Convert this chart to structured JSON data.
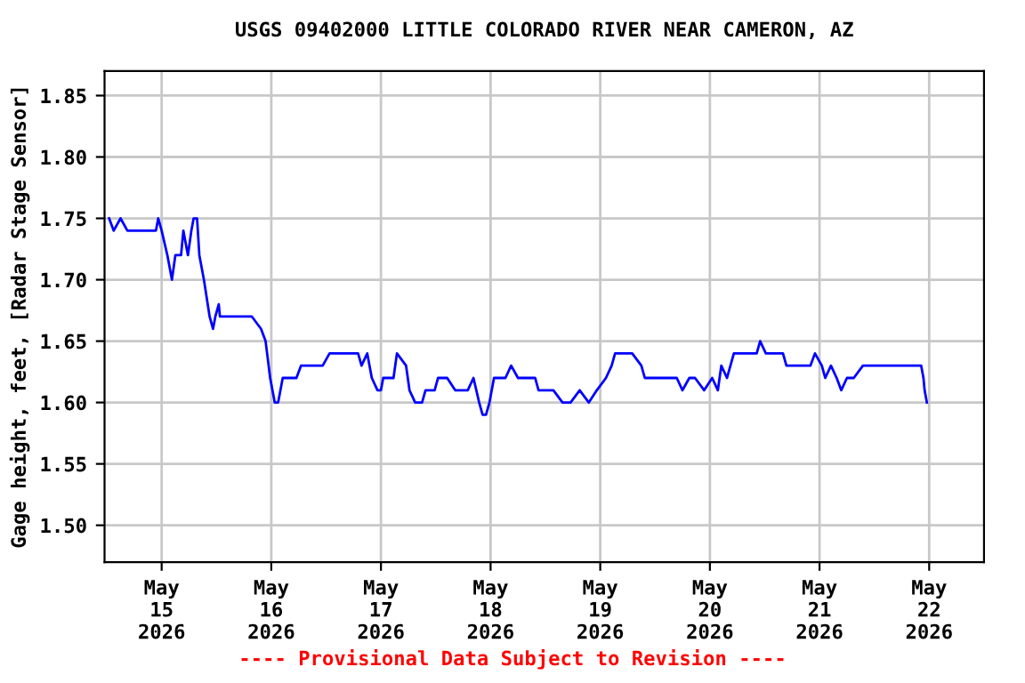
{
  "chart_data": {
    "type": "line",
    "title": "USGS 09402000 LITTLE COLORADO RIVER NEAR CAMERON, AZ",
    "ylabel": "Gage height, feet, [Radar Stage Sensor]",
    "annotations": [
      "---- Provisional Data Subject to Revision ----"
    ],
    "xlim": [
      "2026-05-14T11:30",
      "2026-05-22T12:00"
    ],
    "ylim": [
      1.47,
      1.87
    ],
    "xticks": [
      {
        "value": "2026-05-15",
        "label": "May\n15\n2026"
      },
      {
        "value": "2026-05-16",
        "label": "May\n16\n2026"
      },
      {
        "value": "2026-05-17",
        "label": "May\n17\n2026"
      },
      {
        "value": "2026-05-18",
        "label": "May\n18\n2026"
      },
      {
        "value": "2026-05-19",
        "label": "May\n19\n2026"
      },
      {
        "value": "2026-05-20",
        "label": "May\n20\n2026"
      },
      {
        "value": "2026-05-21",
        "label": "May\n21\n2026"
      },
      {
        "value": "2026-05-22",
        "label": "May\n22\n2026"
      }
    ],
    "yticks": [
      {
        "value": 1.5,
        "label": "1.50"
      },
      1.55,
      {
        "value": 1.6,
        "label": "1.60"
      },
      1.65,
      {
        "value": 1.7,
        "label": "1.70"
      },
      1.75,
      {
        "value": 1.8,
        "label": "1.80"
      },
      1.85
    ],
    "grid": true,
    "series": [
      {
        "color": "#0000ff",
        "x": [
          "2026-05-14T12:30",
          "2026-05-14T13:30",
          "2026-05-14T15:00",
          "2026-05-14T16:30",
          "2026-05-14T18:30",
          "2026-05-14T22:45",
          "2026-05-14T23:15",
          "2026-05-15T00:00",
          "2026-05-15T01:15",
          "2026-05-15T02:15",
          "2026-05-15T03:00",
          "2026-05-15T04:15",
          "2026-05-15T04:45",
          "2026-05-15T05:45",
          "2026-05-15T06:30",
          "2026-05-15T07:00",
          "2026-05-15T07:45",
          "2026-05-15T08:15",
          "2026-05-15T09:15",
          "2026-05-15T10:30",
          "2026-05-15T11:15",
          "2026-05-15T11:45",
          "2026-05-15T12:30",
          "2026-05-15T12:45",
          "2026-05-15T14:00",
          "2026-05-15T16:00",
          "2026-05-15T19:45",
          "2026-05-15T21:45",
          "2026-05-15T22:45",
          "2026-05-15T23:45",
          "2026-05-16T00:45",
          "2026-05-16T01:30",
          "2026-05-16T02:30",
          "2026-05-16T03:30",
          "2026-05-16T05:30",
          "2026-05-16T06:30",
          "2026-05-16T09:15",
          "2026-05-16T11:15",
          "2026-05-16T12:45",
          "2026-05-16T16:00",
          "2026-05-16T19:00",
          "2026-05-16T19:45",
          "2026-05-16T21:00",
          "2026-05-16T22:00",
          "2026-05-16T23:15",
          "2026-05-17T00:00",
          "2026-05-17T00:30",
          "2026-05-17T01:30",
          "2026-05-17T02:45",
          "2026-05-17T03:30",
          "2026-05-17T05:30",
          "2026-05-17T06:15",
          "2026-05-17T07:30",
          "2026-05-17T09:00",
          "2026-05-17T09:45",
          "2026-05-17T11:45",
          "2026-05-17T12:30",
          "2026-05-17T14:30",
          "2026-05-17T16:15",
          "2026-05-17T17:30",
          "2026-05-17T19:00",
          "2026-05-17T20:15",
          "2026-05-17T21:30",
          "2026-05-17T22:15",
          "2026-05-17T23:00",
          "2026-05-17T23:45",
          "2026-05-18T00:45",
          "2026-05-18T02:00",
          "2026-05-18T03:15",
          "2026-05-18T04:30",
          "2026-05-18T06:00",
          "2026-05-18T09:45",
          "2026-05-18T10:30",
          "2026-05-18T13:45",
          "2026-05-18T15:45",
          "2026-05-18T17:30",
          "2026-05-18T19:30",
          "2026-05-18T21:30",
          "2026-05-18T23:15",
          "2026-05-19T01:15",
          "2026-05-19T02:30",
          "2026-05-19T03:15",
          "2026-05-19T05:15",
          "2026-05-19T07:00",
          "2026-05-19T09:00",
          "2026-05-19T09:45",
          "2026-05-19T13:00",
          "2026-05-19T15:00",
          "2026-05-19T16:45",
          "2026-05-19T18:00",
          "2026-05-19T19:30",
          "2026-05-19T20:45",
          "2026-05-19T22:45",
          "2026-05-20T00:30",
          "2026-05-20T01:45",
          "2026-05-20T02:30",
          "2026-05-20T03:45",
          "2026-05-20T04:30",
          "2026-05-20T05:15",
          "2026-05-20T08:15",
          "2026-05-20T10:15",
          "2026-05-20T11:00",
          "2026-05-20T12:15",
          "2026-05-20T16:00",
          "2026-05-20T16:45",
          "2026-05-20T20:00",
          "2026-05-20T22:00",
          "2026-05-20T23:00",
          "2026-05-21T00:30",
          "2026-05-21T01:15",
          "2026-05-21T02:30",
          "2026-05-21T03:45",
          "2026-05-21T04:45",
          "2026-05-21T06:00",
          "2026-05-21T07:30",
          "2026-05-21T09:30",
          "2026-05-21T11:30",
          "2026-05-21T15:15",
          "2026-05-21T19:15",
          "2026-05-21T22:15",
          "2026-05-21T22:45",
          "2026-05-21T23:00",
          "2026-05-21T23:30"
        ],
        "values": [
          1.75,
          1.74,
          1.75,
          1.74,
          1.74,
          1.74,
          1.75,
          1.74,
          1.72,
          1.7,
          1.72,
          1.72,
          1.74,
          1.72,
          1.74,
          1.75,
          1.75,
          1.72,
          1.7,
          1.67,
          1.66,
          1.67,
          1.68,
          1.67,
          1.67,
          1.67,
          1.67,
          1.66,
          1.65,
          1.62,
          1.6,
          1.6,
          1.62,
          1.62,
          1.62,
          1.63,
          1.63,
          1.63,
          1.64,
          1.64,
          1.64,
          1.63,
          1.64,
          1.62,
          1.61,
          1.61,
          1.62,
          1.62,
          1.62,
          1.64,
          1.63,
          1.61,
          1.6,
          1.6,
          1.61,
          1.61,
          1.62,
          1.62,
          1.61,
          1.61,
          1.61,
          1.62,
          1.6,
          1.59,
          1.59,
          1.6,
          1.62,
          1.62,
          1.62,
          1.63,
          1.62,
          1.62,
          1.61,
          1.61,
          1.6,
          1.6,
          1.61,
          1.6,
          1.61,
          1.62,
          1.63,
          1.64,
          1.64,
          1.64,
          1.63,
          1.62,
          1.62,
          1.62,
          1.62,
          1.61,
          1.62,
          1.62,
          1.61,
          1.62,
          1.61,
          1.63,
          1.62,
          1.63,
          1.64,
          1.64,
          1.64,
          1.65,
          1.64,
          1.64,
          1.63,
          1.63,
          1.63,
          1.64,
          1.63,
          1.62,
          1.63,
          1.62,
          1.61,
          1.62,
          1.62,
          1.63,
          1.63,
          1.63,
          1.63,
          1.63,
          1.62,
          1.61,
          1.6
        ]
      }
    ]
  }
}
